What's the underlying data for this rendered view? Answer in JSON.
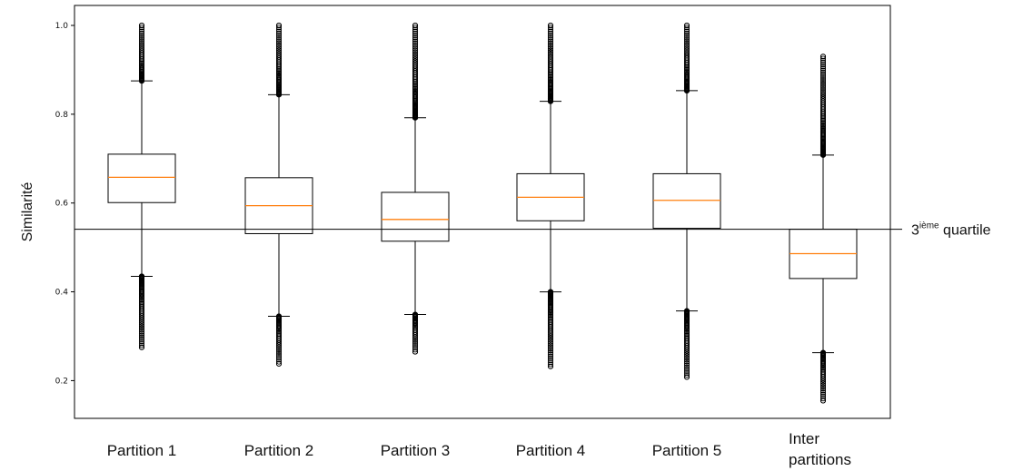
{
  "chart_data": {
    "type": "box",
    "ylabel": "Similarité",
    "xlabel": "",
    "ylim": [
      0.115,
      1.045
    ],
    "yticks": [
      0.2,
      0.4,
      0.6,
      0.8,
      1.0
    ],
    "ytick_labels": [
      "0.2",
      "0.4",
      "0.6",
      "0.8",
      "1.0"
    ],
    "grid": false,
    "colors": {
      "box": "#000000",
      "median": "#ff7f0e",
      "reference_line": "#000000"
    },
    "reference_line": {
      "value": 0.541,
      "label_base": "3",
      "label_sup": "ième",
      "label_text": " quartile"
    },
    "boxes": [
      {
        "label": "Partition 1",
        "whisker_low": 0.435,
        "q1": 0.601,
        "median": 0.658,
        "q3": 0.71,
        "whisker_high": 0.875,
        "outliers_low_range": [
          0.275,
          0.434
        ],
        "outliers_high_range": [
          0.876,
          1.0
        ]
      },
      {
        "label": "Partition 2",
        "whisker_low": 0.345,
        "q1": 0.531,
        "median": 0.594,
        "q3": 0.657,
        "whisker_high": 0.844,
        "outliers_low_range": [
          0.238,
          0.344
        ],
        "outliers_high_range": [
          0.845,
          1.0
        ]
      },
      {
        "label": "Partition 3",
        "whisker_low": 0.349,
        "q1": 0.514,
        "median": 0.563,
        "q3": 0.624,
        "whisker_high": 0.792,
        "outliers_low_range": [
          0.265,
          0.348
        ],
        "outliers_high_range": [
          0.793,
          1.0
        ]
      },
      {
        "label": "Partition 4",
        "whisker_low": 0.4,
        "q1": 0.56,
        "median": 0.613,
        "q3": 0.666,
        "whisker_high": 0.829,
        "outliers_low_range": [
          0.232,
          0.399
        ],
        "outliers_high_range": [
          0.83,
          1.0
        ]
      },
      {
        "label": "Partition 5",
        "whisker_low": 0.357,
        "q1": 0.543,
        "median": 0.606,
        "q3": 0.666,
        "whisker_high": 0.853,
        "outliers_low_range": [
          0.208,
          0.356
        ],
        "outliers_high_range": [
          0.854,
          1.0
        ]
      },
      {
        "label": "Inter\npartitions",
        "whisker_low": 0.263,
        "q1": 0.43,
        "median": 0.486,
        "q3": 0.541,
        "whisker_high": 0.708,
        "outliers_low_range": [
          0.155,
          0.262
        ],
        "outliers_high_range": [
          0.709,
          0.93
        ]
      }
    ]
  }
}
